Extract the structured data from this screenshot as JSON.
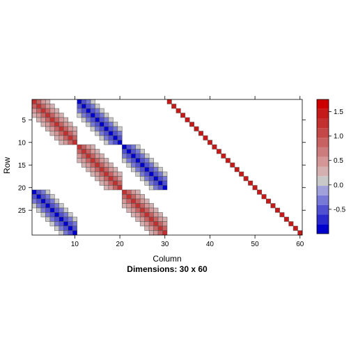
{
  "chart_data": {
    "type": "heatmap",
    "title": "",
    "xlabel": "Column",
    "ylabel": "Row",
    "subtitle": "Dimensions: 30 x 60",
    "nrow": 30,
    "ncol": 60,
    "x_ticks": [
      10,
      20,
      30,
      40,
      50,
      60
    ],
    "y_ticks": [
      5,
      10,
      15,
      20,
      25
    ],
    "legend": {
      "position": "right",
      "ticks": [
        -0.5,
        0.0,
        0.5,
        1.0,
        1.5
      ],
      "tick_labels": [
        "-0.5",
        "0.0",
        "0.5",
        "1.0",
        "1.5"
      ],
      "range": [
        -1.0,
        1.75
      ],
      "colors": [
        "#0000CC",
        "#2A2ACC",
        "#5050D0",
        "#7878D6",
        "#A0A0DA",
        "#C8C8C8",
        "#D4B0B0",
        "#D49696",
        "#CC7C7C",
        "#C86262",
        "#C44848",
        "#C23030",
        "#C51A1A",
        "#CC0000"
      ]
    },
    "blocks": [
      {
        "row_start": 1,
        "col_start": 1,
        "size": 10,
        "diag": 1.2,
        "off": [
          0.9,
          0.55,
          0.25
        ]
      },
      {
        "row_start": 1,
        "col_start": 11,
        "size": 10,
        "diag": -0.95,
        "off": [
          -0.55,
          -0.25,
          0.05
        ]
      },
      {
        "row_start": 11,
        "col_start": 11,
        "size": 10,
        "diag": 1.2,
        "off": [
          0.9,
          0.55,
          0.25
        ]
      },
      {
        "row_start": 11,
        "col_start": 21,
        "size": 10,
        "diag": -0.95,
        "off": [
          -0.55,
          -0.25,
          0.05
        ]
      },
      {
        "row_start": 21,
        "col_start": 1,
        "size": 10,
        "diag": -0.95,
        "off": [
          -0.55,
          -0.25,
          0.05
        ]
      },
      {
        "row_start": 21,
        "col_start": 21,
        "size": 10,
        "diag": 1.2,
        "off": [
          0.9,
          0.55,
          0.25
        ]
      }
    ],
    "identity_block": {
      "row_start": 1,
      "col_start": 31,
      "size": 30,
      "value": 1.5
    }
  }
}
